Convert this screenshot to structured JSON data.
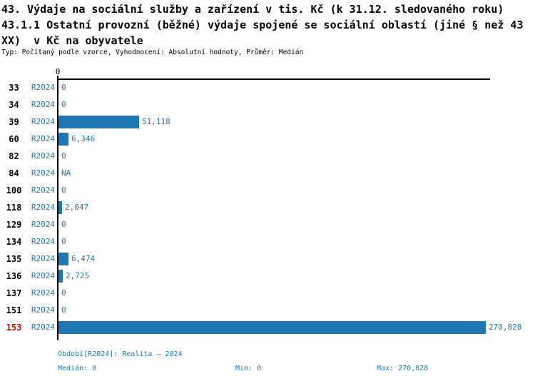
{
  "header": {
    "title_line1": "43. Výdaje na sociální služby a zařízení v tis. Kč (k 31.12. sledovaného roku)",
    "title_line2": "43.1.1 Ostatní provozní (běžné) výdaje spojené se sociální oblastí (jiné § než 43",
    "title_line3": "XX)  v Kč na obyvatele",
    "meta": "Typ: Počítaný podle vzorce, Vyhodnocení: Absolutní hodnoty, Průměr: Medián"
  },
  "chart_data": {
    "type": "bar",
    "orientation": "horizontal",
    "title": "43. Výdaje na sociální služby a zařízení v tis. Kč (k 31.12. sledovaného roku) — 43.1.1 Ostatní provozní (běžné) výdaje spojené se sociální oblastí (jiné § než 43 XX) v Kč na obyvatele",
    "series_label": "R2024",
    "categories": [
      "33",
      "34",
      "39",
      "60",
      "82",
      "84",
      "100",
      "118",
      "129",
      "134",
      "135",
      "136",
      "137",
      "151",
      "153"
    ],
    "values": [
      0,
      0,
      51118,
      6346,
      0,
      null,
      0,
      2047,
      0,
      0,
      6474,
      2725,
      0,
      0,
      270828
    ],
    "value_labels": [
      "0",
      "0",
      "51,118",
      "6,346",
      "0",
      "NA",
      "0",
      "2,047",
      "0",
      "0",
      "6,474",
      "2,725",
      "0",
      "0",
      "270,828"
    ],
    "highlighted_category": "153",
    "x_tick_labels": [
      "0"
    ],
    "xlim": [
      0,
      273000
    ],
    "grid": false,
    "legend_position": "none"
  },
  "footer": {
    "period": "Období[R2024]: Realita – 2024",
    "median": "Medián: 0",
    "min": "Min: 0",
    "max": "Max: 270,828"
  },
  "colors": {
    "bar": "#2077b4",
    "blue_text": "#1f77b4",
    "highlight_red": "#dd0000",
    "axis": "#000000",
    "background": "#ffffff"
  }
}
